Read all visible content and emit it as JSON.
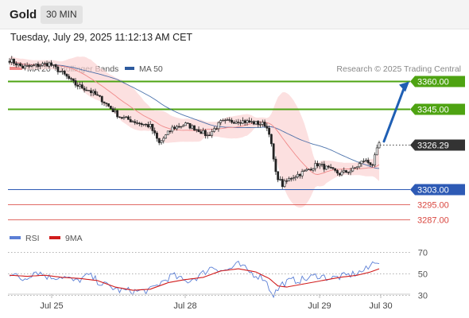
{
  "header": {
    "title": "Gold",
    "timeframe": "30 MIN"
  },
  "timestamp": "Tuesday, July 29, 2025 11:12:13 AM CET",
  "legend": {
    "ma20": {
      "label": "MA 20 + Bollinger Bands",
      "color": "#f08a8a"
    },
    "ma50": {
      "label": "MA 50",
      "color": "#2d5a9e"
    },
    "copyright": "Research © 2025 Trading Central"
  },
  "rsi_legend": {
    "rsi": {
      "label": "RSI",
      "color": "#5b7fd6"
    },
    "ma9": {
      "label": "9MA",
      "color": "#d11c1c"
    }
  },
  "chart_data": [
    {
      "type": "candlestick",
      "ylim": [
        3281,
        3390
      ],
      "x": [
        "Jul 25",
        "Jul 28",
        "Jul 29",
        "Jul 30"
      ],
      "current_price": 3326.29,
      "levels": [
        {
          "value": 3360.0,
          "label": "3360.00",
          "kind": "resistance",
          "color": "#4ea312"
        },
        {
          "value": 3345.0,
          "label": "3345.00",
          "kind": "resistance",
          "color": "#4ea312"
        },
        {
          "value": 3326.29,
          "label": "3326.29",
          "kind": "current",
          "color": "#333333"
        },
        {
          "value": 3303.0,
          "label": "3303.00",
          "kind": "pivot",
          "color": "#2d5ab5"
        },
        {
          "value": 3295.0,
          "label": "3295.00",
          "kind": "support",
          "color": "#d9463f"
        },
        {
          "value": 3287.0,
          "label": "3287.00",
          "kind": "support",
          "color": "#d9463f"
        }
      ],
      "forecast": {
        "from": 3328,
        "to": 3360,
        "color": "#1f5fb4"
      },
      "close_anchors": [
        [
          0,
          3371
        ],
        [
          6,
          3367
        ],
        [
          12,
          3368
        ],
        [
          18,
          3369
        ],
        [
          24,
          3364
        ],
        [
          30,
          3358
        ],
        [
          36,
          3355
        ],
        [
          42,
          3350
        ],
        [
          50,
          3341
        ],
        [
          58,
          3338
        ],
        [
          64,
          3336
        ],
        [
          68,
          3327
        ],
        [
          74,
          3335
        ],
        [
          80,
          3337
        ],
        [
          86,
          3334
        ],
        [
          90,
          3331
        ],
        [
          96,
          3338
        ],
        [
          104,
          3339
        ],
        [
          110,
          3338
        ],
        [
          116,
          3337
        ],
        [
          118,
          3333
        ],
        [
          121,
          3311
        ],
        [
          124,
          3305
        ],
        [
          128,
          3309
        ],
        [
          134,
          3312
        ],
        [
          140,
          3316
        ],
        [
          146,
          3313
        ],
        [
          150,
          3311
        ],
        [
          156,
          3313
        ],
        [
          161,
          3318
        ],
        [
          165,
          3316
        ],
        [
          168,
          3327
        ]
      ]
    },
    {
      "type": "line",
      "name_rsi": "RSI",
      "ylim": [
        20,
        80
      ],
      "yticks": [
        30,
        50,
        70
      ],
      "rsi_anchors": [
        [
          0,
          50
        ],
        [
          6,
          44
        ],
        [
          12,
          52
        ],
        [
          18,
          46
        ],
        [
          24,
          47
        ],
        [
          30,
          42
        ],
        [
          36,
          48
        ],
        [
          42,
          40
        ],
        [
          50,
          34
        ],
        [
          58,
          33
        ],
        [
          64,
          34
        ],
        [
          68,
          40
        ],
        [
          74,
          48
        ],
        [
          80,
          42
        ],
        [
          86,
          47
        ],
        [
          92,
          56
        ],
        [
          98,
          52
        ],
        [
          104,
          58
        ],
        [
          110,
          50
        ],
        [
          116,
          45
        ],
        [
          118,
          36
        ],
        [
          120,
          30
        ],
        [
          124,
          40
        ],
        [
          128,
          43
        ],
        [
          134,
          44
        ],
        [
          140,
          48
        ],
        [
          146,
          45
        ],
        [
          152,
          47
        ],
        [
          158,
          50
        ],
        [
          163,
          54
        ],
        [
          166,
          62
        ],
        [
          168,
          61
        ]
      ],
      "ma9_anchors": [
        [
          0,
          48
        ],
        [
          8,
          47
        ],
        [
          16,
          48
        ],
        [
          24,
          46
        ],
        [
          32,
          45
        ],
        [
          40,
          43
        ],
        [
          48,
          37
        ],
        [
          56,
          34
        ],
        [
          64,
          35
        ],
        [
          72,
          41
        ],
        [
          80,
          44
        ],
        [
          88,
          46
        ],
        [
          96,
          52
        ],
        [
          104,
          54
        ],
        [
          112,
          51
        ],
        [
          118,
          45
        ],
        [
          122,
          38
        ],
        [
          126,
          37
        ],
        [
          134,
          40
        ],
        [
          142,
          43
        ],
        [
          150,
          46
        ],
        [
          158,
          48
        ],
        [
          164,
          51
        ],
        [
          168,
          54
        ]
      ]
    }
  ]
}
